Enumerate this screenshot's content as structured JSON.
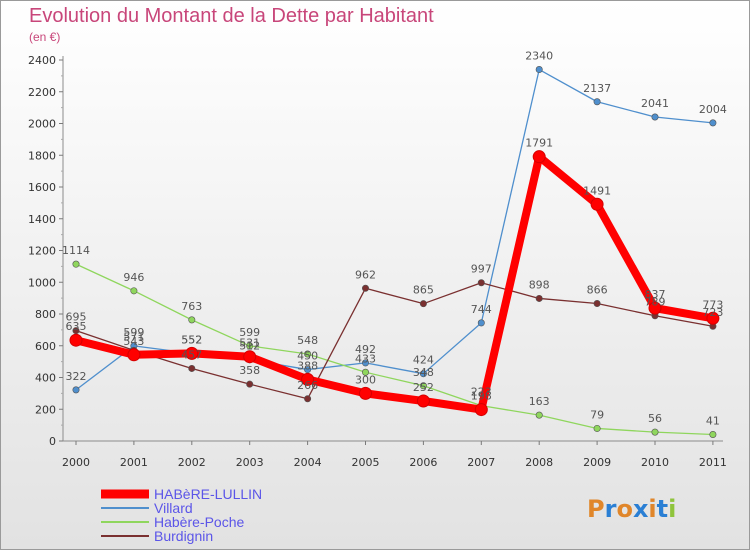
{
  "header": {
    "title": "Evolution du Montant de la Dette par Habitant",
    "subtitle": "(en €)"
  },
  "logo": {
    "text": "Proxiti"
  },
  "chart_data": {
    "type": "line",
    "title": "Evolution du Montant de la Dette par Habitant",
    "subtitle": "(en €)",
    "x": [
      "2000",
      "2001",
      "2002",
      "2003",
      "2004",
      "2005",
      "2006",
      "2007",
      "2008",
      "2009",
      "2010",
      "2011"
    ],
    "ylim": [
      0,
      2400
    ],
    "yticks": [
      0,
      200,
      400,
      600,
      800,
      1000,
      1200,
      1400,
      1600,
      1800,
      2000,
      2200,
      2400
    ],
    "grid": false,
    "legend_position": "bottom-left",
    "series": [
      {
        "name": "HABèRE-LULLIN",
        "color": "#ff0000",
        "values": [
          635,
          543,
          552,
          531,
          388,
          300,
          252,
          198,
          1791,
          1491,
          837,
          773
        ]
      },
      {
        "name": "Villard",
        "color": "#4f8fcd",
        "values": [
          322,
          599,
          552,
          512,
          450,
          492,
          424,
          744,
          2340,
          2137,
          2041,
          2004
        ]
      },
      {
        "name": "Habère-Poche",
        "color": "#8fd65d",
        "values": [
          1114,
          946,
          763,
          599,
          548,
          433,
          348,
          223,
          163,
          79,
          56,
          41
        ]
      },
      {
        "name": "Burdignin",
        "color": "#7a3030",
        "values": [
          695,
          571,
          457,
          358,
          266,
          962,
          865,
          997,
          898,
          866,
          789,
          723
        ]
      }
    ]
  }
}
